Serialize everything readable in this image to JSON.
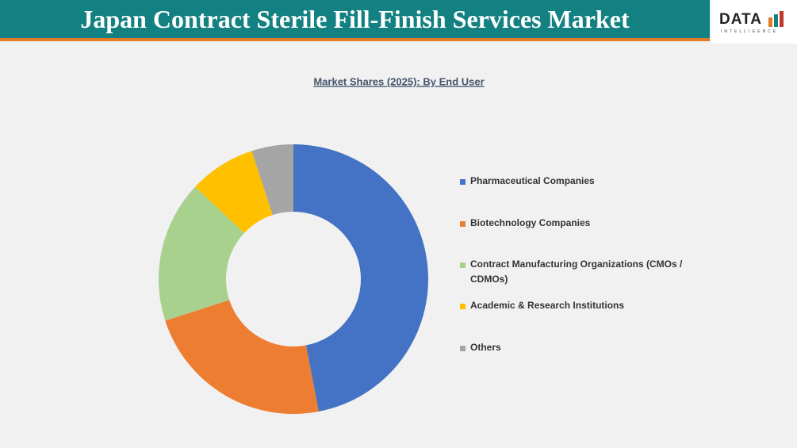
{
  "header": {
    "title": "Japan Contract Sterile Fill-Finish Services Market",
    "logo_main": "DATA",
    "logo_sub": "INTELLIGENCE"
  },
  "chart_data": {
    "type": "donut",
    "title": "Market Shares (2025): By End User",
    "categories": [
      "Pharmaceutical Companies",
      "Biotechnology Companies",
      "Contract Manufacturing Organizations (CMOs / CDMOs)",
      "Academic & Research Institutions",
      "Others"
    ],
    "values": [
      47,
      23,
      17,
      8,
      5
    ],
    "colors": [
      "#4472c4",
      "#ed7d31",
      "#a9d18e",
      "#ffc000",
      "#a5a5a5"
    ],
    "legend": "right"
  }
}
